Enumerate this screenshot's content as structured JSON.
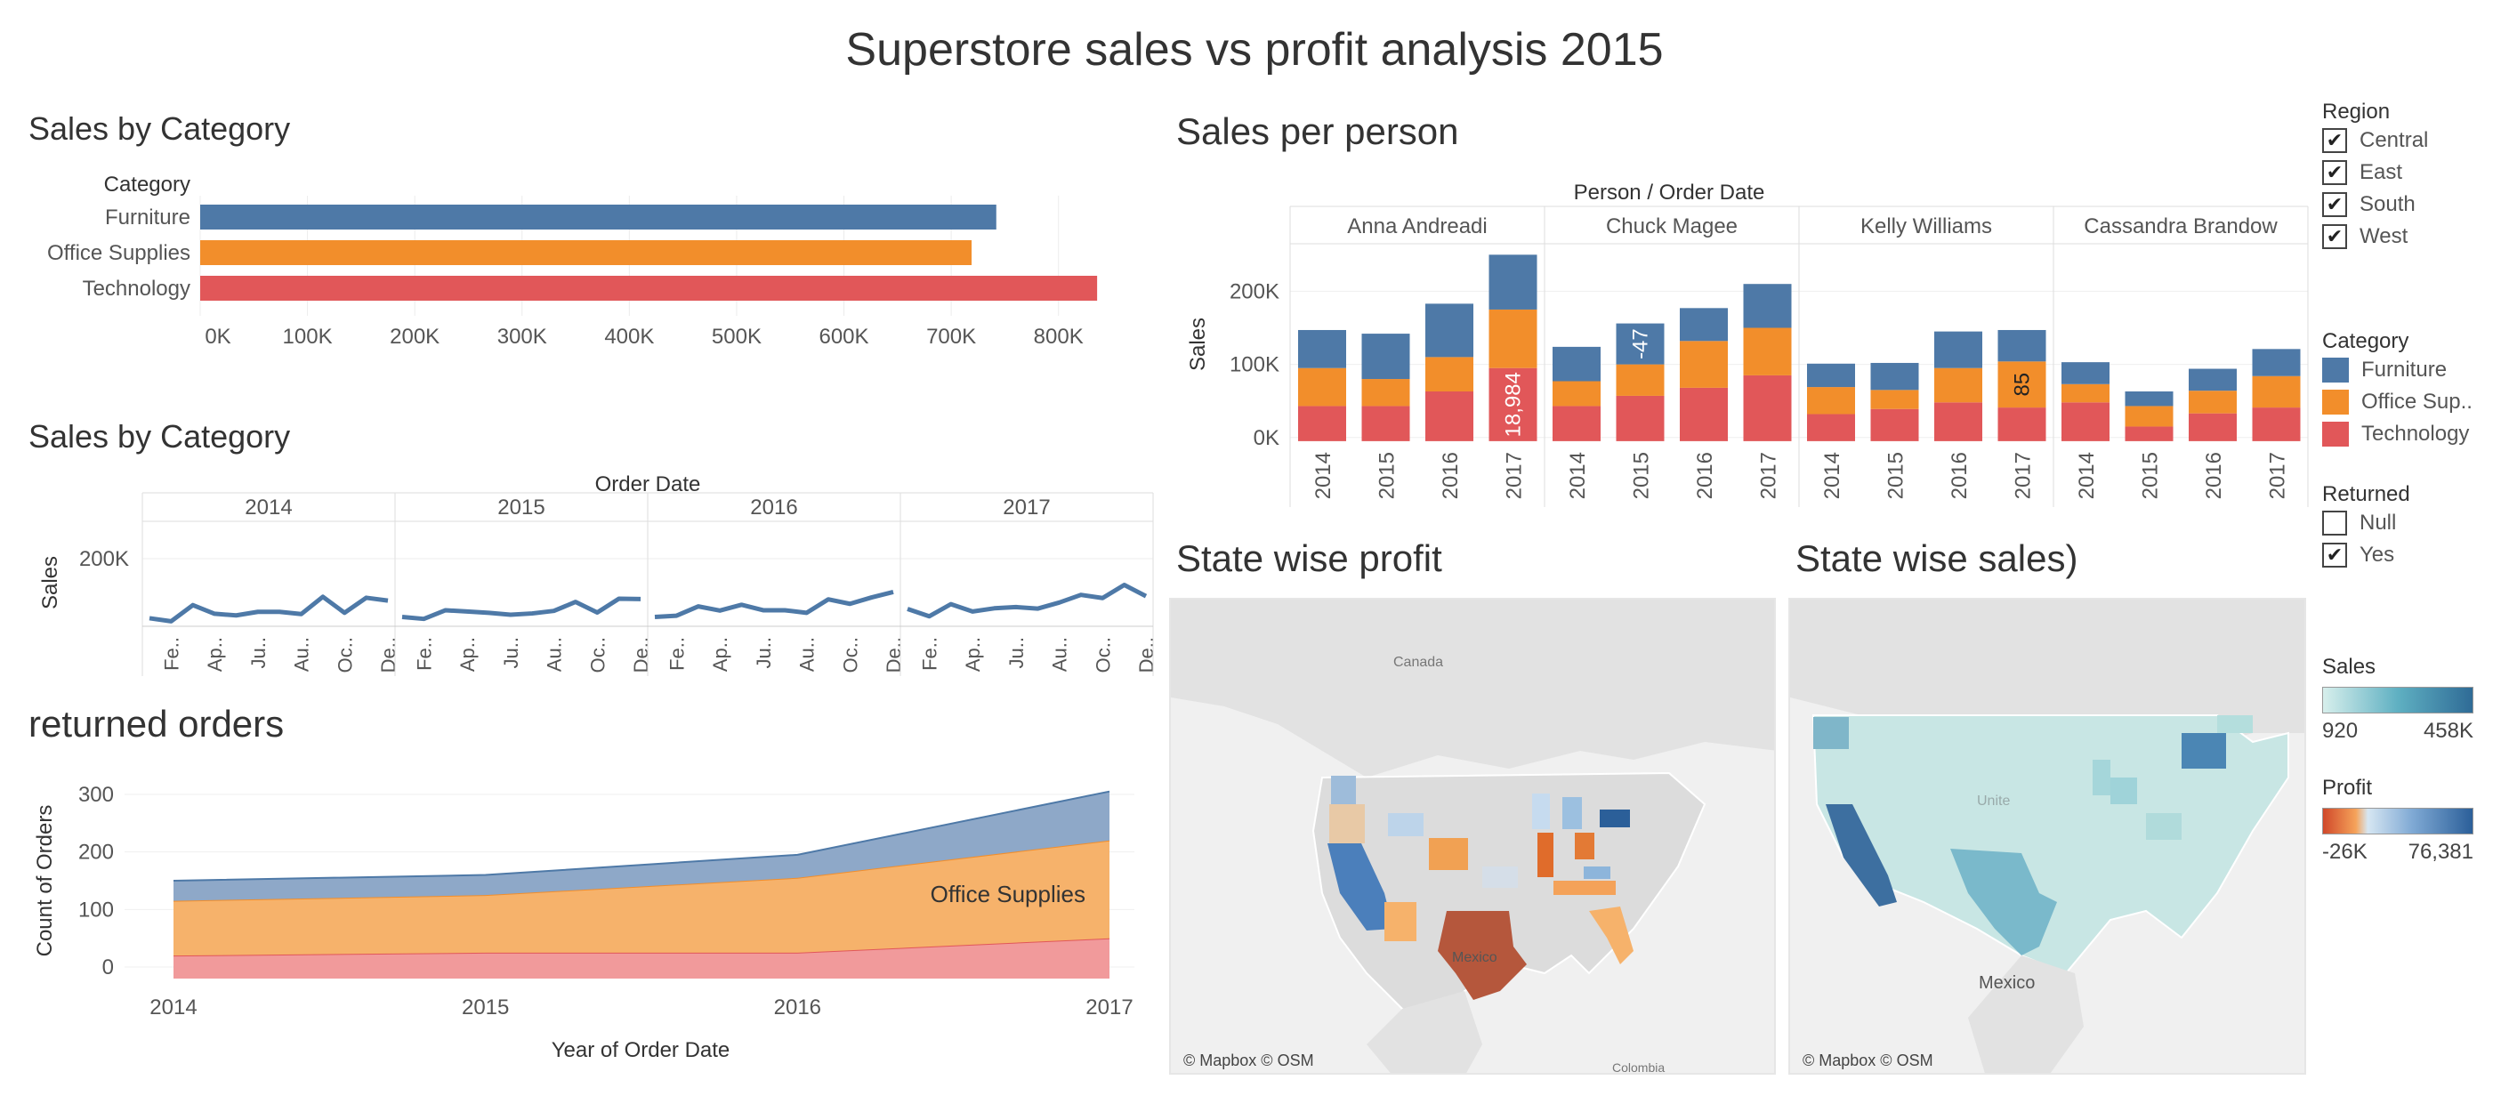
{
  "dashboard": {
    "title": "Superstore sales vs profit analysis 2015"
  },
  "colors": {
    "furniture": "#4e79a7",
    "office": "#f28e2b",
    "technology": "#e15759"
  },
  "panels": {
    "sales_by_category_bar": "Sales by Category",
    "sales_by_category_line": "Sales by Category",
    "returned_orders": "returned orders",
    "sales_per_person": "Sales per person",
    "state_profit": "State wise profit",
    "state_sales": "State wise sales)"
  },
  "chart_data": [
    {
      "id": "category_bar",
      "type": "bar",
      "orientation": "horizontal",
      "row_header": "Category",
      "categories": [
        "Furniture",
        "Office Supplies",
        "Technology"
      ],
      "values": [
        742000,
        719000,
        836000
      ],
      "xlim": [
        0,
        850000
      ],
      "xticks": [
        "0K",
        "100K",
        "200K",
        "300K",
        "400K",
        "500K",
        "600K",
        "700K",
        "800K"
      ]
    },
    {
      "id": "monthly_line",
      "type": "line",
      "column_header": "Order Date",
      "ylabel": "Sales",
      "yticks": [
        "200K"
      ],
      "years": [
        "2014",
        "2015",
        "2016",
        "2017"
      ],
      "month_ticks": [
        "Fe..",
        "Ap..",
        "Ju..",
        "Au..",
        "Oc..",
        "De.."
      ],
      "ylim": [
        0,
        250000
      ],
      "values": [
        [
          14000,
          4500,
          55000,
          28000,
          23000,
          34000,
          34000,
          27000,
          81000,
          31000,
          78000,
          69000
        ],
        [
          18000,
          12000,
          39000,
          35000,
          31000,
          25000,
          29000,
          37000,
          65000,
          32000,
          75000,
          74000
        ],
        [
          18000,
          22000,
          51000,
          38000,
          56000,
          39000,
          39000,
          31000,
          73000,
          59000,
          79000,
          96000
        ],
        [
          43000,
          20000,
          58000,
          35000,
          45000,
          49000,
          44000,
          63000,
          87000,
          77000,
          118000,
          83000
        ]
      ]
    },
    {
      "id": "returned_orders",
      "type": "area",
      "stacked": true,
      "x": [
        "2014",
        "2015",
        "2016",
        "2017"
      ],
      "xlabel": "Year of Order Date",
      "ylabel": "Count of Orders",
      "yticks": [
        "0",
        "100",
        "200",
        "300"
      ],
      "ylim": [
        -20,
        320
      ],
      "series": [
        {
          "name": "",
          "values": [
            20,
            25,
            25,
            50
          ]
        },
        {
          "name": "Office Supplies",
          "values": [
            95,
            100,
            130,
            170
          ]
        },
        {
          "name": "",
          "values": [
            35,
            35,
            40,
            85
          ]
        }
      ],
      "annotation": "Office Supplies"
    },
    {
      "id": "sales_per_person",
      "type": "bar",
      "stacked": true,
      "column_header": "Person  /  Order Date",
      "ylabel": "Sales",
      "yticks": [
        "0K",
        "100K",
        "200K"
      ],
      "ylim": [
        -10000,
        265000
      ],
      "persons": [
        "Anna Andreadi",
        "Chuck Magee",
        "Kelly Williams",
        "Cassandra Brandow"
      ],
      "years": [
        "2014",
        "2015",
        "2016",
        "2017"
      ],
      "technology": [
        [
          43000,
          43000,
          63000,
          95000
        ],
        [
          43000,
          57000,
          68000,
          85000
        ],
        [
          32000,
          39000,
          48000,
          41000
        ],
        [
          48000,
          15000,
          33000,
          41000
        ]
      ],
      "office": [
        [
          52000,
          37000,
          47000,
          80000
        ],
        [
          34000,
          43000,
          64000,
          65000
        ],
        [
          37000,
          26000,
          47000,
          63000
        ],
        [
          25000,
          28000,
          31000,
          43000
        ]
      ],
      "furniture": [
        [
          52000,
          62000,
          73000,
          75000
        ],
        [
          47000,
          56000,
          45000,
          60000
        ],
        [
          32000,
          37000,
          50000,
          43000
        ],
        [
          30000,
          20000,
          30000,
          37000
        ]
      ],
      "labels": [
        {
          "person": 0,
          "year": 3,
          "series": "technology",
          "text": "18,984"
        },
        {
          "person": 1,
          "year": 1,
          "series": "furniture",
          "text": "-47"
        },
        {
          "person": 2,
          "year": 3,
          "series": "office",
          "text": "85"
        }
      ]
    }
  ],
  "maps": {
    "profit_labels": {
      "canada": "Canada",
      "mexico": "Mexico",
      "colombia": "Colombia"
    },
    "sales_labels": {
      "mexico": "Mexico",
      "united": "Unite"
    },
    "credit": "© Mapbox © OSM"
  },
  "legends": {
    "region": {
      "title": "Region",
      "items": [
        "Central",
        "East",
        "South",
        "West"
      ]
    },
    "category": {
      "title": "Category",
      "items": [
        "Furniture",
        "Office Sup..",
        "Technology"
      ]
    },
    "returned": {
      "title": "Returned",
      "items": [
        "Null",
        "Yes"
      ]
    },
    "sales": {
      "title": "Sales",
      "min": "920",
      "max": "458K"
    },
    "profit": {
      "title": "Profit",
      "min": "-26K",
      "max": "76,381"
    },
    "check_mark": "✔"
  }
}
